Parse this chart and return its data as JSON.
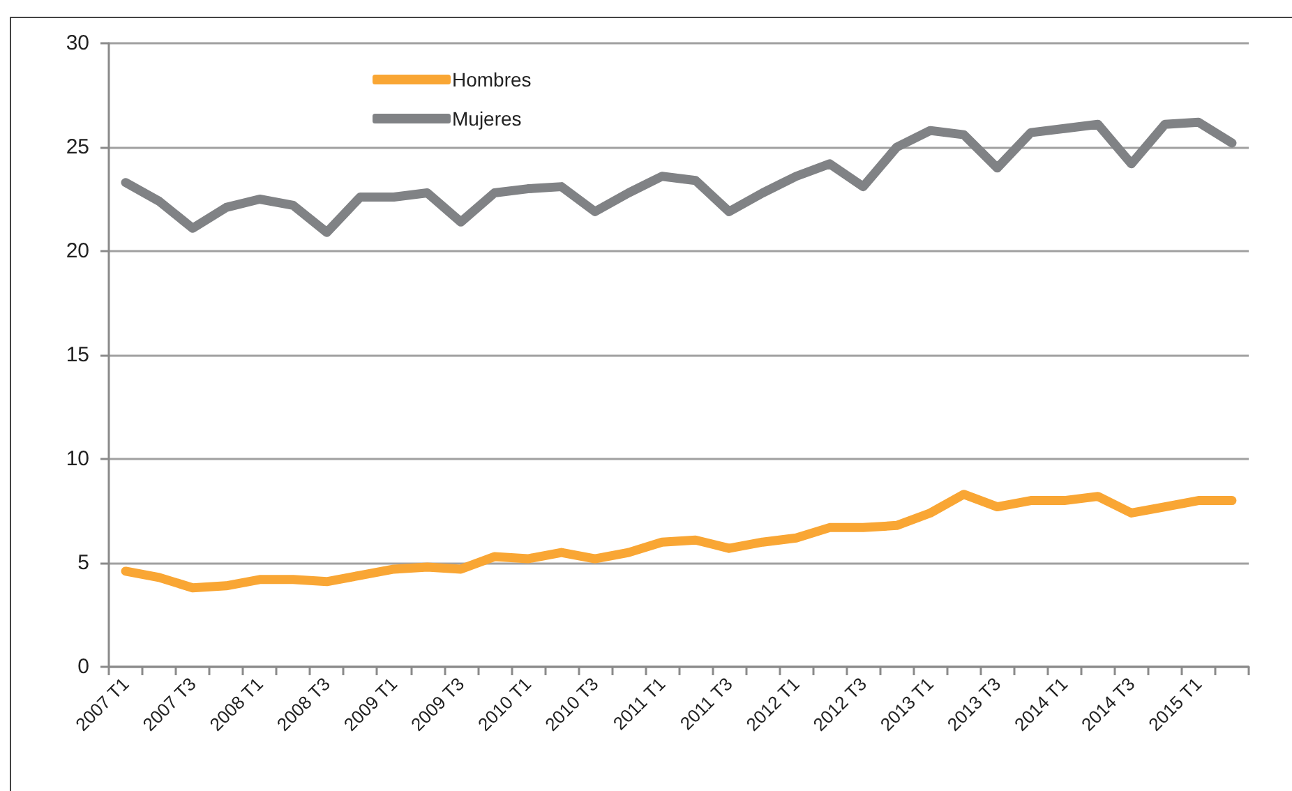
{
  "chart_data": {
    "type": "line",
    "categories": [
      "2007 T1",
      null,
      "2007 T3",
      null,
      "2008 T1",
      null,
      "2008 T3",
      null,
      "2009 T1",
      null,
      "2009 T3",
      null,
      "2010 T1",
      null,
      "2010 T3",
      null,
      "2011 T1",
      null,
      "2011 T3",
      null,
      "2012 T1",
      null,
      "2012 T3",
      null,
      "2013 T1",
      null,
      "2013 T3",
      null,
      "2014 T1",
      null,
      "2014 T3",
      null,
      "2015 T1",
      null
    ],
    "series": [
      {
        "name": "Hombres",
        "color": "#f9a634",
        "values": [
          4.6,
          4.3,
          3.8,
          3.9,
          4.2,
          4.2,
          4.1,
          4.4,
          4.7,
          4.8,
          4.7,
          5.3,
          5.2,
          5.5,
          5.2,
          5.5,
          6.0,
          6.1,
          5.7,
          6.0,
          6.2,
          6.7,
          6.7,
          6.8,
          7.4,
          8.3,
          7.7,
          8.0,
          8.0,
          8.2,
          7.4,
          7.7,
          8.0,
          8.0
        ]
      },
      {
        "name": "Mujeres",
        "color": "#808285",
        "values": [
          23.3,
          22.4,
          21.1,
          22.1,
          22.5,
          22.2,
          20.9,
          22.6,
          22.6,
          22.8,
          21.4,
          22.8,
          23.0,
          23.1,
          21.9,
          22.8,
          23.6,
          23.4,
          21.9,
          22.8,
          23.6,
          24.2,
          23.1,
          25.0,
          25.8,
          25.6,
          24.0,
          25.7,
          25.9,
          26.1,
          24.2,
          26.1,
          26.2,
          25.2
        ]
      }
    ],
    "ylim": [
      0,
      30
    ],
    "yticks": [
      0,
      5,
      10,
      15,
      20,
      25,
      30
    ],
    "grid": "y",
    "legend": "top left",
    "marker": "none",
    "line_style": "solid"
  }
}
